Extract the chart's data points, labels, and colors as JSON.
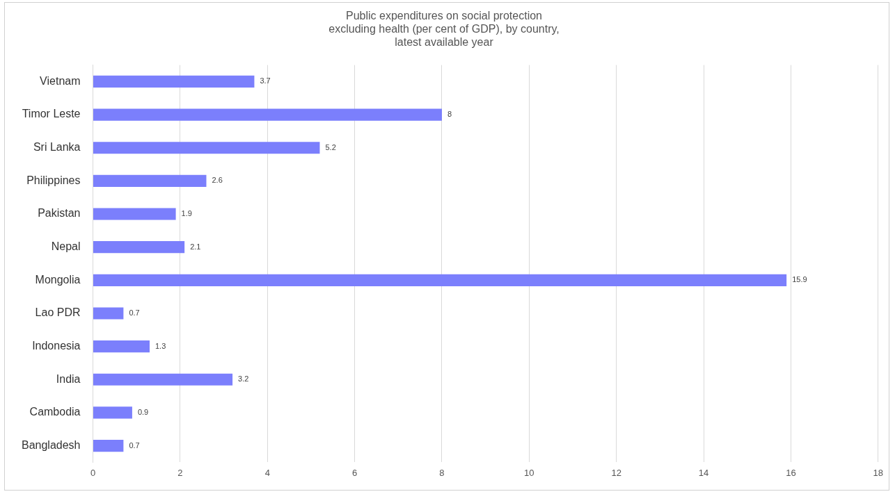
{
  "chart_data": {
    "type": "bar",
    "orientation": "horizontal",
    "title": "Public expenditures on social protection\nexcluding health (per cent of GDP), by country,\nlatest available year",
    "categories": [
      "Vietnam",
      "Timor Leste",
      "Sri Lanka",
      "Philippines",
      "Pakistan",
      "Nepal",
      "Mongolia",
      "Lao PDR",
      "Indonesia",
      "India",
      "Cambodia",
      "Bangladesh"
    ],
    "values": [
      3.7,
      8,
      5.2,
      2.6,
      1.9,
      2.1,
      15.9,
      0.7,
      1.3,
      3.2,
      0.9,
      0.7
    ],
    "color": "#7b7ffc",
    "xlim": [
      0,
      18
    ],
    "xticks": [
      0,
      2,
      4,
      6,
      8,
      10,
      12,
      14,
      16,
      18
    ],
    "grid": "x",
    "data_labels": true,
    "legend": false
  }
}
